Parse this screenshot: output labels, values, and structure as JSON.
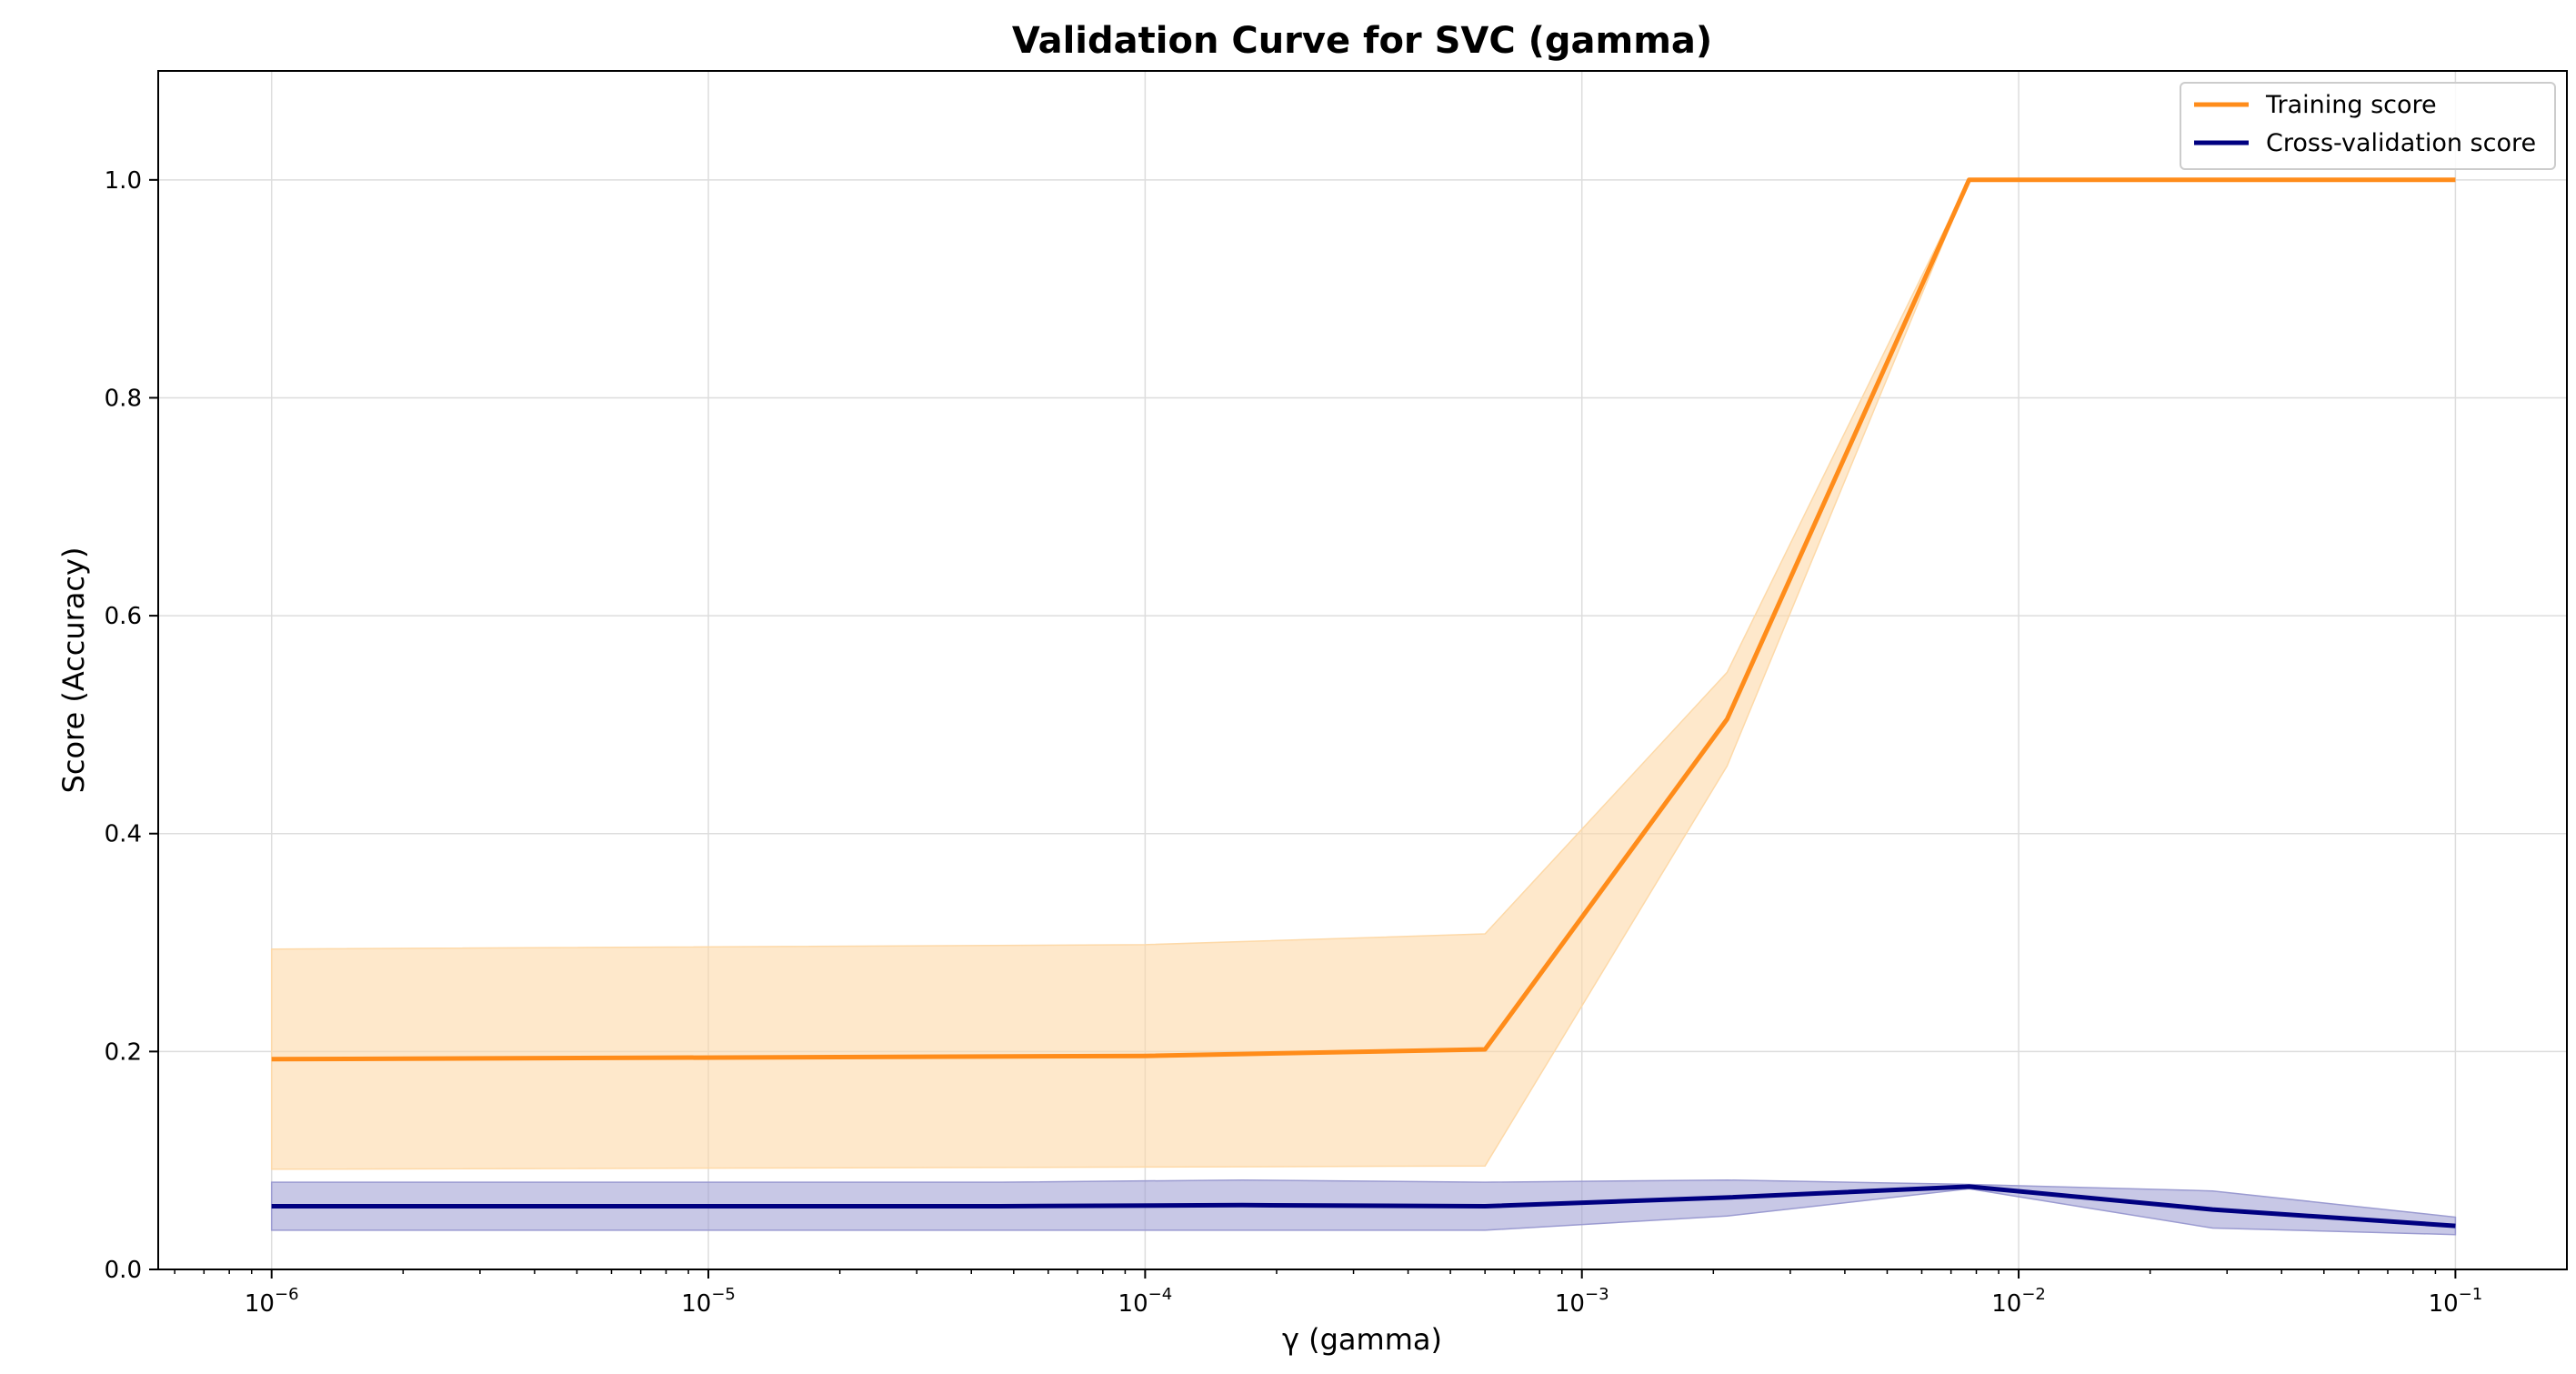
{
  "chart_data": {
    "type": "line",
    "title": "Validation Curve for SVC (gamma)",
    "xlabel": "γ (gamma)",
    "ylabel": "Score (Accuracy)",
    "xscale": "log",
    "xlim": [
      5.5e-07,
      0.18
    ],
    "ylim": [
      0.0,
      1.1
    ],
    "grid": true,
    "legend_position": "top-right",
    "x": [
      1e-06,
      4.64e-06,
      2.15e-05,
      0.0001,
      0.000464,
      0.00215,
      0.01,
      0.0464,
      0.1
    ],
    "x_ticks": [
      {
        "value": 1e-06,
        "base": "10",
        "exp": "−6"
      },
      {
        "value": 1e-05,
        "base": "10",
        "exp": "−5"
      },
      {
        "value": 0.0001,
        "base": "10",
        "exp": "−4"
      },
      {
        "value": 0.001,
        "base": "10",
        "exp": "−3"
      },
      {
        "value": 0.01,
        "base": "10",
        "exp": "−2"
      },
      {
        "value": 0.1,
        "base": "10",
        "exp": "−1"
      }
    ],
    "y_ticks": [
      {
        "value": 0.0,
        "label": "0.0"
      },
      {
        "value": 0.2,
        "label": "0.2"
      },
      {
        "value": 0.4,
        "label": "0.4"
      },
      {
        "value": 0.6,
        "label": "0.6"
      },
      {
        "value": 0.8,
        "label": "0.8"
      },
      {
        "value": 1.0,
        "label": "1.0"
      }
    ],
    "series": [
      {
        "name": "Training score",
        "color": "#ff8c1a",
        "band_color": "#fdd9a8",
        "x": [
          1e-06,
          0.0001,
          0.0006,
          0.00215,
          0.0077,
          0.1
        ],
        "values": [
          0.193,
          0.196,
          0.202,
          0.505,
          1.0,
          1.0
        ],
        "upper": [
          0.294,
          0.298,
          0.308,
          0.548,
          1.0,
          1.0
        ],
        "lower": [
          0.092,
          0.094,
          0.095,
          0.462,
          1.0,
          1.0
        ]
      },
      {
        "name": "Cross-validation score",
        "color": "#000080",
        "band_color": "#9b9bd1",
        "x": [
          1e-06,
          4.64e-05,
          0.000167,
          0.0006,
          0.00215,
          0.0077,
          0.0278,
          0.1
        ],
        "values": [
          0.058,
          0.058,
          0.059,
          0.058,
          0.066,
          0.076,
          0.055,
          0.04
        ],
        "upper": [
          0.08,
          0.08,
          0.082,
          0.08,
          0.082,
          0.078,
          0.072,
          0.048
        ],
        "lower": [
          0.036,
          0.036,
          0.036,
          0.036,
          0.049,
          0.074,
          0.038,
          0.032
        ]
      }
    ]
  }
}
